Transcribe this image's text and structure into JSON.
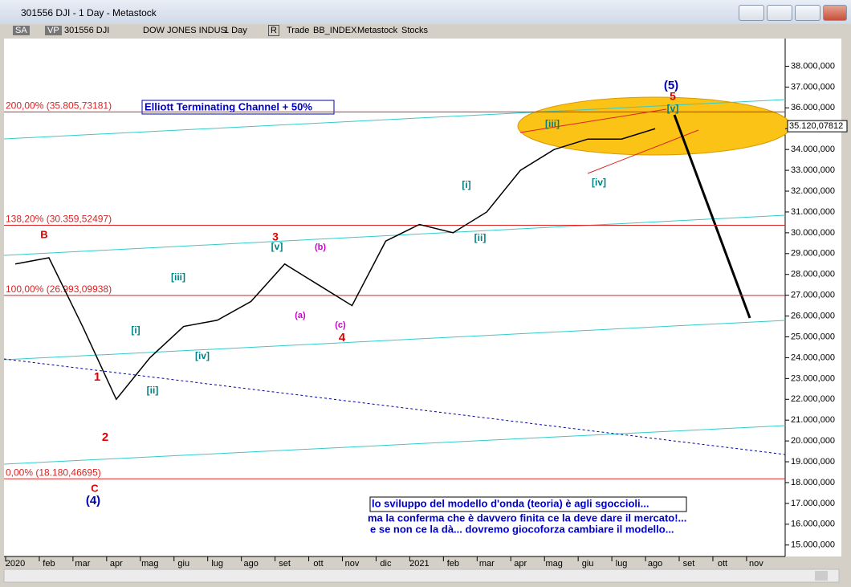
{
  "window": {
    "title": "301556 DJI - 1 Day - Metastock"
  },
  "toolbar": [
    "SA",
    "VP",
    "301556 DJI",
    "DOW JONES INDUS",
    "1 Day",
    "R",
    "Trade",
    "BB_INDEX",
    "Metastock",
    "Stocks"
  ],
  "chart_data": {
    "type": "line",
    "categories": [
      "2020",
      "feb",
      "mar",
      "apr",
      "mag",
      "giu",
      "lug",
      "ago",
      "set",
      "ott",
      "nov",
      "dic",
      "2021",
      "feb",
      "mar",
      "apr",
      "mag",
      "giu",
      "lug",
      "ago",
      "set",
      "ott",
      "nov"
    ],
    "values": [
      28500,
      28800,
      25500,
      22000,
      24000,
      25500,
      25800,
      26700,
      28500,
      27500,
      26500,
      29600,
      30400,
      30000,
      31000,
      33000,
      34000,
      34500,
      34500,
      35000,
      null,
      null,
      null
    ],
    "color": "#000000",
    "ylim": [
      14450,
      39330
    ],
    "yticks": [
      {
        "value": 15000,
        "label": "15.000,000"
      },
      {
        "value": 16000,
        "label": "16.000,000"
      },
      {
        "value": 17000,
        "label": "17.000,000"
      },
      {
        "value": 18000,
        "label": "18.000,000"
      },
      {
        "value": 19000,
        "label": "19.000,000"
      },
      {
        "value": 20000,
        "label": "20.000,000"
      },
      {
        "value": 21000,
        "label": "21.000,000"
      },
      {
        "value": 22000,
        "label": "22.000,000"
      },
      {
        "value": 23000,
        "label": "23.000,000"
      },
      {
        "value": 24000,
        "label": "24.000,000"
      },
      {
        "value": 25000,
        "label": "25.000,000"
      },
      {
        "value": 26000,
        "label": "26.000,000"
      },
      {
        "value": 27000,
        "label": "27.000,000"
      },
      {
        "value": 28000,
        "label": "28.000,000"
      },
      {
        "value": 29000,
        "label": "29.000,000"
      },
      {
        "value": 30000,
        "label": "30.000,000"
      },
      {
        "value": 31000,
        "label": "31.000,000"
      },
      {
        "value": 32000,
        "label": "32.000,000"
      },
      {
        "value": 33000,
        "label": "33.000,000"
      },
      {
        "value": 34000,
        "label": "34.000,000"
      },
      {
        "value": 35000,
        "label": "35.000,000"
      },
      {
        "value": 36000,
        "label": "36.000,000"
      },
      {
        "value": 37000,
        "label": "37.000,000"
      },
      {
        "value": 38000,
        "label": "38.000,000"
      }
    ],
    "last_price": {
      "value": 35120.07812,
      "label": "35.120,07812"
    },
    "levels": [
      {
        "value": 35805.73181,
        "label": "200,00% (35.805,73181)"
      },
      {
        "value": 30359.52497,
        "label": "138,20% (30.359,52497)"
      },
      {
        "value": 26993.09938,
        "label": "100,00% (26.993,09938)"
      },
      {
        "value": 18180.46695,
        "label": "0,00% (18.180,46695)"
      }
    ],
    "channel_title": "Elliott Terminating Channel + 50%",
    "annotations": [
      "B",
      "1",
      "2",
      "C",
      "(4)",
      "3",
      "4",
      "5",
      "(5)",
      "[i]",
      "[ii]",
      "[iii]",
      "[iv]",
      "[v]",
      "(a)",
      "(b)",
      "(c)",
      "[i]",
      "[ii]",
      "[iii]",
      "[iv]",
      "[v]"
    ],
    "notes": [
      "lo sviluppo del modello d'onda (teoria) è agli sgoccioli...",
      "ma la conferma che è davvero finita ce la deve dare il mercato!...",
      "e se non ce la dà... dovremo giocoforza cambiare il modello..."
    ]
  }
}
